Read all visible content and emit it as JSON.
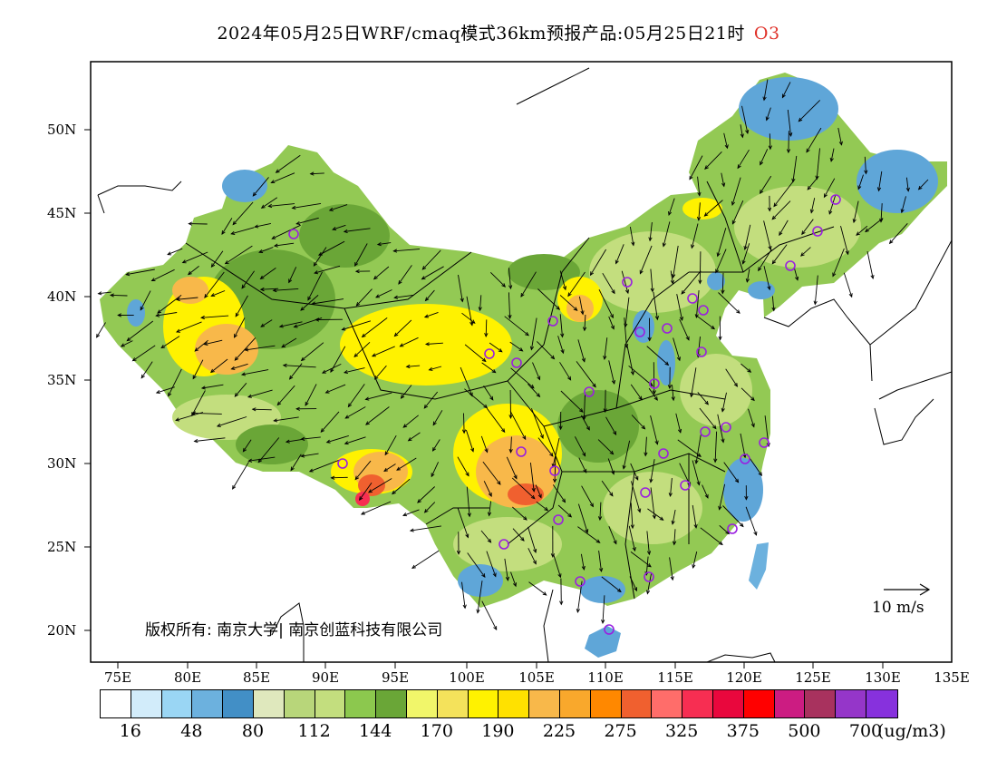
{
  "title": "2024年05月25日WRF/cmaq模式36km预报产品:05月25日21时",
  "species": "O3",
  "lat_labels": [
    "50N",
    "45N",
    "40N",
    "35N",
    "30N",
    "25N",
    "20N"
  ],
  "lon_labels": [
    "75E",
    "80E",
    "85E",
    "90E",
    "95E",
    "100E",
    "105E",
    "110E",
    "115E",
    "120E",
    "125E",
    "130E",
    "135E"
  ],
  "copyright": "版权所有: 南京大学| 南京创蓝科技有限公司",
  "wind_scale_label": "10  m/s",
  "colorbar": {
    "colors": [
      "#ffffff",
      "#d2ecfa",
      "#9ad6f4",
      "#6cb1de",
      "#428fc6",
      "#dfe8bd",
      "#b8d67a",
      "#c3de7e",
      "#8cc84e",
      "#6aa637",
      "#f1f66a",
      "#f4e25b",
      "#fff200",
      "#ffe100",
      "#f8b84a",
      "#f9a82c",
      "#ff8800",
      "#f0602f",
      "#ff6d6a",
      "#f72e52",
      "#e9073d",
      "#ff0000",
      "#cc1c82",
      "#a8325e",
      "#9536c9",
      "#8731dd"
    ],
    "labels": [
      "16",
      "48",
      "80",
      "112",
      "144",
      "170",
      "190",
      "225",
      "275",
      "325",
      "375",
      "500",
      "700"
    ],
    "unit": "(ug/m3)"
  },
  "legend_colors": {
    "frame": "#000000",
    "boundary": "#000000",
    "station_marker": "#9a1fe0",
    "title_species": "#e0332b"
  }
}
